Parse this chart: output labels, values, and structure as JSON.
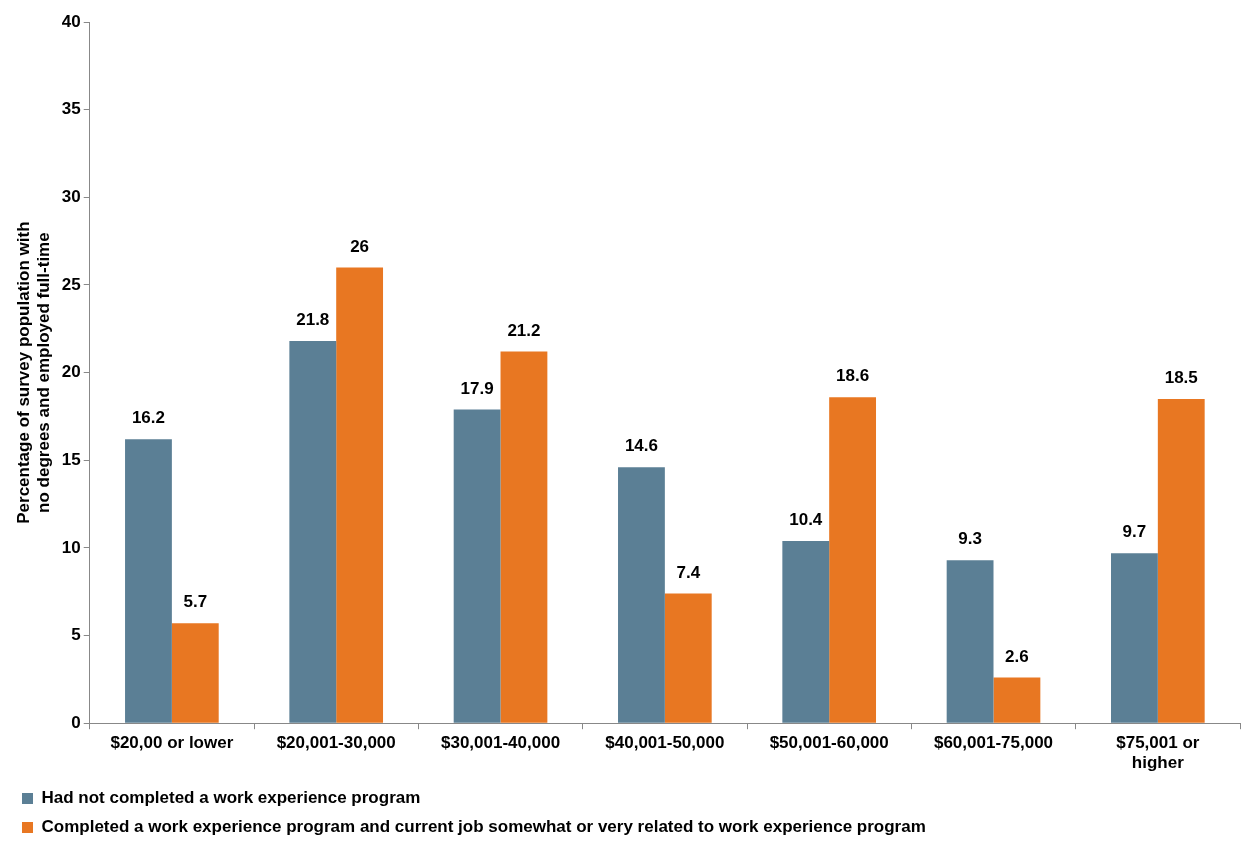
{
  "chart_data": {
    "type": "bar",
    "ylabel": "Percentage of survey population with\nno degrees and employed full-time",
    "categories": [
      "$20,00 or lower",
      "$20,001-30,000",
      "$30,001-40,000",
      "$40,001-50,000",
      "$50,001-60,000",
      "$60,001-75,000",
      "$75,001 or higher"
    ],
    "series": [
      {
        "name": "Had not completed a work experience program",
        "color": "#5b7f95",
        "values": [
          16.2,
          21.8,
          17.9,
          14.6,
          10.4,
          9.3,
          9.7
        ]
      },
      {
        "name": "Completed a work experience program and current job somewhat or very related to work experience program",
        "color": "#e87722",
        "values": [
          5.7,
          26,
          21.2,
          7.4,
          18.6,
          2.6,
          18.5
        ]
      }
    ],
    "ylim": [
      0,
      40
    ],
    "yticks": [
      0,
      5,
      10,
      15,
      20,
      25,
      30,
      35,
      40
    ],
    "grid": false,
    "legend": "bottom left",
    "data_labels": true
  }
}
